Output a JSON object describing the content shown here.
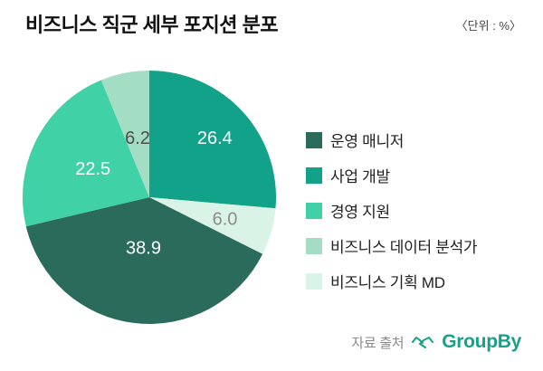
{
  "header": {
    "title": "비즈니스 직군 세부 포지션 분포",
    "unit_note": "〈단위 : %〉"
  },
  "chart_data": {
    "type": "pie",
    "title": "비즈니스 직군 세부 포지션 분포",
    "unit": "%",
    "start_angle_deg": 0,
    "direction": "clockwise",
    "slices": [
      {
        "label": "사업 개발",
        "value": 26.4,
        "color": "#12a189",
        "label_color": "#ffffff",
        "label_frac": 0.7
      },
      {
        "label": "비즈니스 기획 MD",
        "value": 6.0,
        "color": "#d9f3e7",
        "label_color": "#8c8c8c",
        "label_frac": 0.62
      },
      {
        "label": "운영 매니저",
        "value": 38.9,
        "color": "#2b6b5c",
        "label_color": "#ffffff",
        "label_frac": 0.4
      },
      {
        "label": "경영 지원",
        "value": 22.5,
        "color": "#41d1a7",
        "label_color": "#ffffff",
        "label_frac": 0.5
      },
      {
        "label": "비즈니스 데이터 분석가",
        "value": 6.2,
        "color": "#a2ddc4",
        "label_color": "#4d4d4d",
        "label_frac": 0.48
      }
    ],
    "legend": [
      {
        "label": "운영 매니저",
        "color": "#2b6b5c"
      },
      {
        "label": "사업 개발",
        "color": "#12a189"
      },
      {
        "label": "경영 지원",
        "color": "#41d1a7"
      },
      {
        "label": "비즈니스 데이터 분석가",
        "color": "#a2ddc4"
      },
      {
        "label": "비즈니스 기획 MD",
        "color": "#d9f3e7"
      }
    ],
    "legend_position": "right"
  },
  "footer": {
    "source_label": "자료 출처",
    "brand": "GroupBy",
    "brand_color": "#16a189"
  }
}
